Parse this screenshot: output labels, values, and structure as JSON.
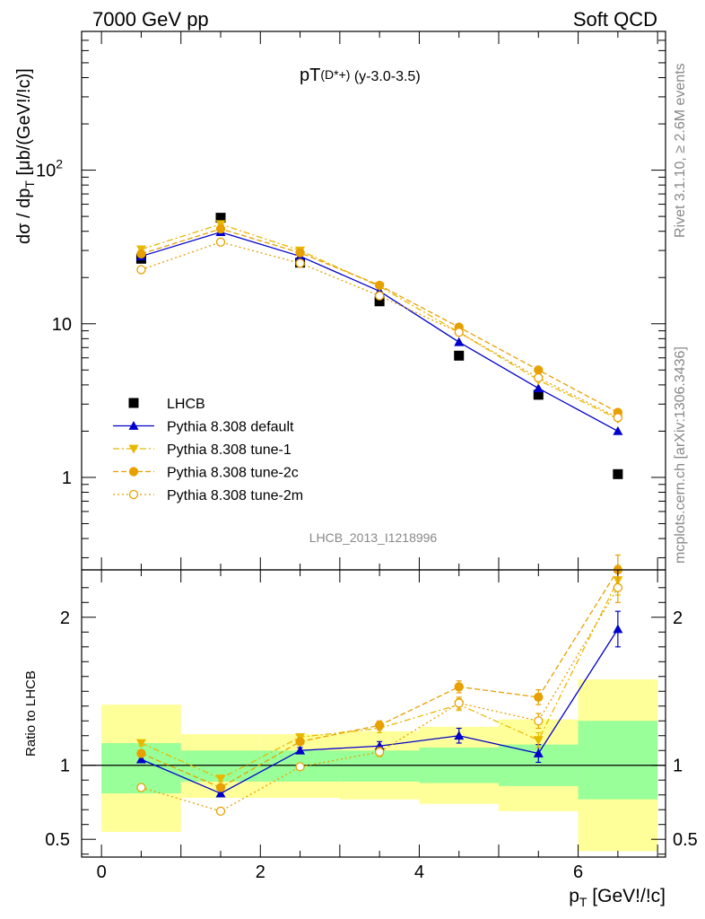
{
  "header": {
    "left": "7000 GeV pp",
    "right": "Soft QCD"
  },
  "side_text": {
    "rivet": "Rivet 3.1.10, ≥ 2.6M events",
    "source": "mcplots.cern.ch [arXiv:1306.3436]"
  },
  "chart_data": [
    {
      "type": "line",
      "title_main": "pT",
      "title_sub": "(D*+)",
      "title_rest": " (y-3.0-3.5)",
      "watermark": "LHCB_2013_I1218996",
      "ylabel": "dσ / dp_T [μb/(GeV!/!c)]",
      "yscale": "log",
      "ylim": [
        0.25,
        800
      ],
      "xlim": [
        -0.25,
        7.1
      ],
      "yticks": [
        {
          "value": 1,
          "label": "1"
        },
        {
          "value": 10,
          "label": "10"
        },
        {
          "value": 100,
          "label": "10",
          "sup": "2"
        }
      ],
      "legend_position": "bottom-left",
      "series": [
        {
          "name": "LHCB",
          "style": "data",
          "color": "#000000",
          "x": [
            0.5,
            1.5,
            2.5,
            3.5,
            4.5,
            5.5,
            6.5
          ],
          "y": [
            26.5,
            49.0,
            25.0,
            14.0,
            6.2,
            3.45,
            1.05
          ]
        },
        {
          "name": "Pythia 8.308 default",
          "style": "solid-triangle-up",
          "color": "#0000cc",
          "x": [
            0.5,
            1.5,
            2.5,
            3.5,
            4.5,
            5.5,
            6.5
          ],
          "y": [
            27.5,
            39.5,
            27.5,
            16.3,
            7.6,
            3.8,
            2.0
          ]
        },
        {
          "name": "Pythia 8.308 tune-1",
          "style": "dashdot-triangle-down",
          "color": "#e8b800",
          "x": [
            0.5,
            1.5,
            2.5,
            3.5,
            4.5,
            5.5,
            6.5
          ],
          "y": [
            30.5,
            44.5,
            30.0,
            17.5,
            8.8,
            4.3,
            2.4
          ]
        },
        {
          "name": "Pythia 8.308 tune-2c",
          "style": "dashed-circle",
          "color": "#e8a000",
          "x": [
            0.5,
            1.5,
            2.5,
            3.5,
            4.5,
            5.5,
            6.5
          ],
          "y": [
            28.5,
            41.5,
            29.0,
            17.8,
            9.5,
            5.0,
            2.65
          ]
        },
        {
          "name": "Pythia 8.308 tune-2m",
          "style": "dotted-open-circle",
          "color": "#e8a000",
          "x": [
            0.5,
            1.5,
            2.5,
            3.5,
            4.5,
            5.5,
            6.5
          ],
          "y": [
            22.5,
            34.0,
            24.8,
            15.2,
            8.8,
            4.45,
            2.45
          ]
        }
      ]
    },
    {
      "type": "line",
      "ylabel": "Ratio to LHCB",
      "xlabel_main": "p",
      "xlabel_sub": "T",
      "xlabel_rest": " [GeV!/!c]",
      "xlim": [
        -0.25,
        7.1
      ],
      "ylim": [
        0.38,
        2.32
      ],
      "xticks": [
        {
          "value": 0,
          "label": "0"
        },
        {
          "value": 2,
          "label": "2"
        },
        {
          "value": 4,
          "label": "4"
        },
        {
          "value": 6,
          "label": "6"
        }
      ],
      "yticks": [
        {
          "value": 0.5,
          "label": "0.5"
        },
        {
          "value": 1,
          "label": "1"
        },
        {
          "value": 2,
          "label": "2"
        }
      ],
      "bands": [
        {
          "x0": 0,
          "x1": 1,
          "stat_lo": 0.81,
          "stat_hi": 1.15,
          "tot_lo": 0.55,
          "tot_hi": 1.41
        },
        {
          "x0": 1,
          "x1": 2,
          "stat_lo": 0.89,
          "stat_hi": 1.1,
          "tot_lo": 0.78,
          "tot_hi": 1.21
        },
        {
          "x0": 2,
          "x1": 3,
          "stat_lo": 0.89,
          "stat_hi": 1.1,
          "tot_lo": 0.78,
          "tot_hi": 1.21
        },
        {
          "x0": 3,
          "x1": 4,
          "stat_lo": 0.89,
          "stat_hi": 1.1,
          "tot_lo": 0.77,
          "tot_hi": 1.23
        },
        {
          "x0": 4,
          "x1": 5,
          "stat_lo": 0.88,
          "stat_hi": 1.12,
          "tot_lo": 0.74,
          "tot_hi": 1.26
        },
        {
          "x0": 5,
          "x1": 6,
          "stat_lo": 0.86,
          "stat_hi": 1.14,
          "tot_lo": 0.69,
          "tot_hi": 1.31
        },
        {
          "x0": 6,
          "x1": 7,
          "stat_lo": 0.77,
          "stat_hi": 1.3,
          "tot_lo": 0.42,
          "tot_hi": 1.58
        }
      ],
      "series": [
        {
          "name": "Pythia 8.308 default",
          "style": "solid-triangle-up",
          "color": "#0000cc",
          "x": [
            0.5,
            1.5,
            2.5,
            3.5,
            4.5,
            5.5,
            6.5
          ],
          "y": [
            1.04,
            0.81,
            1.1,
            1.13,
            1.2,
            1.08,
            1.92
          ],
          "err": [
            0.02,
            0.02,
            0.02,
            0.03,
            0.05,
            0.06,
            0.12
          ]
        },
        {
          "name": "Pythia 8.308 tune-1",
          "style": "dashdot-triangle-down",
          "color": "#e8b800",
          "x": [
            0.5,
            1.5,
            2.5,
            3.5,
            4.5,
            5.5,
            6.5
          ],
          "y": [
            1.15,
            0.91,
            1.19,
            1.25,
            1.41,
            1.17,
            2.25
          ],
          "err": [
            0.02,
            0.02,
            0.02,
            0.03,
            0.04,
            0.05,
            0.1
          ]
        },
        {
          "name": "Pythia 8.308 tune-2c",
          "style": "dashed-circle",
          "color": "#e8a000",
          "x": [
            0.5,
            1.5,
            2.5,
            3.5,
            4.5,
            5.5,
            6.5
          ],
          "y": [
            1.08,
            0.85,
            1.16,
            1.27,
            1.53,
            1.46,
            2.32
          ],
          "err": [
            0.02,
            0.02,
            0.02,
            0.03,
            0.04,
            0.05,
            0.1
          ]
        },
        {
          "name": "Pythia 8.308 tune-2m",
          "style": "dotted-open-circle",
          "color": "#e8a000",
          "x": [
            0.5,
            1.5,
            2.5,
            3.5,
            4.5,
            5.5,
            6.5
          ],
          "y": [
            0.85,
            0.69,
            0.99,
            1.09,
            1.42,
            1.3,
            2.2
          ],
          "err": [
            0.02,
            0.02,
            0.02,
            0.03,
            0.04,
            0.05,
            0.1
          ]
        }
      ]
    }
  ]
}
